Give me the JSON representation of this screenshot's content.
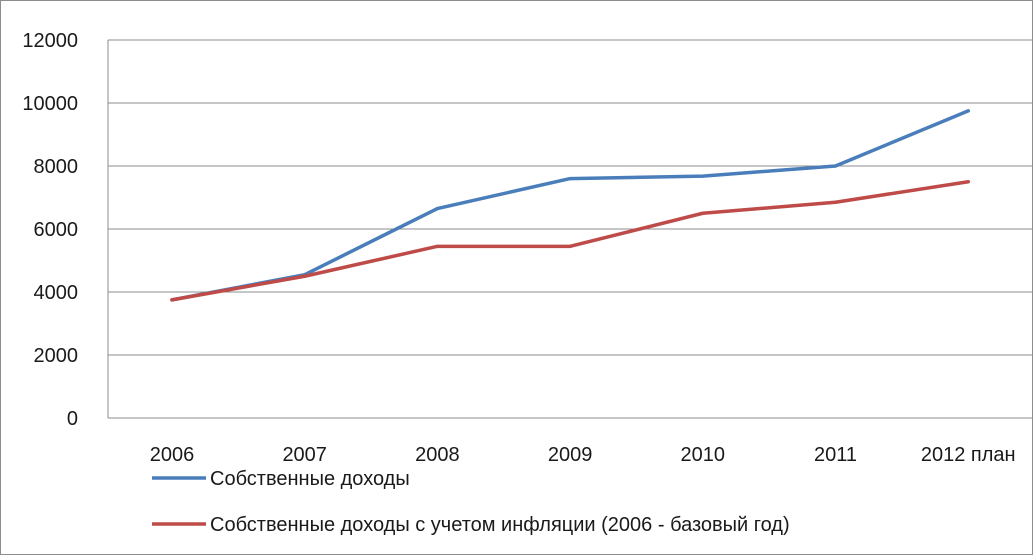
{
  "chart_data": {
    "type": "line",
    "categories": [
      "2006",
      "2007",
      "2008",
      "2009",
      "2010",
      "2011",
      "2012 план"
    ],
    "ylim": [
      0,
      12000
    ],
    "yticks": [
      0,
      2000,
      4000,
      6000,
      8000,
      10000,
      12000
    ],
    "grid": true,
    "legend_position": "bottom",
    "series": [
      {
        "name": "Собственные доходы",
        "color": "#4a7ebb",
        "values": [
          3750,
          4550,
          6650,
          7600,
          7680,
          8000,
          9750
        ]
      },
      {
        "name": "Собственные доходы с учетом инфляции (2006 - базовый год)",
        "color": "#be4b48",
        "values": [
          3750,
          4500,
          5450,
          5450,
          6500,
          6850,
          7500
        ]
      }
    ]
  }
}
